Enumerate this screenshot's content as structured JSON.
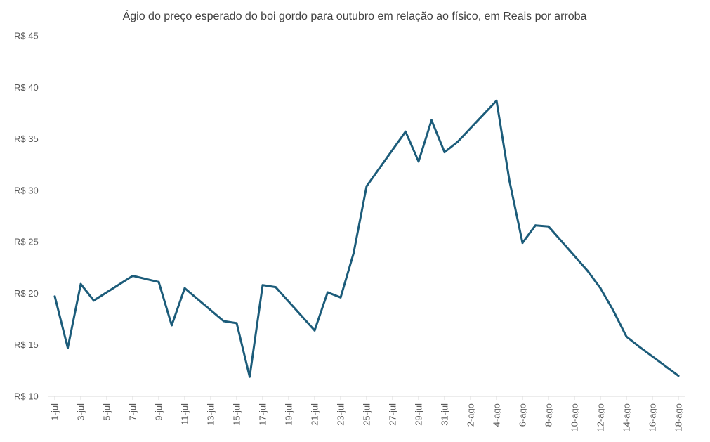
{
  "chart_data": {
    "type": "line",
    "title": "Ágio do preço esperado do boi gordo para outubro em relação ao físico, em Reais por arroba",
    "xlabel": "",
    "ylabel": "",
    "ylim": [
      10,
      45
    ],
    "yticks": [
      10,
      15,
      20,
      25,
      30,
      35,
      40,
      45
    ],
    "ytick_labels": [
      "R$ 10",
      "R$ 15",
      "R$ 20",
      "R$ 25",
      "R$ 30",
      "R$ 35",
      "R$ 40",
      "R$ 45"
    ],
    "xticks": [
      "1-jul",
      "3-jul",
      "5-jul",
      "7-jul",
      "9-jul",
      "11-jul",
      "13-jul",
      "15-jul",
      "17-jul",
      "19-jul",
      "21-jul",
      "23-jul",
      "25-jul",
      "27-jul",
      "29-jul",
      "31-jul",
      "2-ago",
      "4-ago",
      "6-ago",
      "8-ago",
      "10-ago",
      "12-ago",
      "14-ago",
      "16-ago",
      "18-ago"
    ],
    "x": [
      "1-jul",
      "2-jul",
      "3-jul",
      "4-jul",
      "7-jul",
      "8-jul",
      "9-jul",
      "10-jul",
      "11-jul",
      "14-jul",
      "15-jul",
      "16-jul",
      "17-jul",
      "18-jul",
      "21-jul",
      "22-jul",
      "23-jul",
      "24-jul",
      "25-jul",
      "28-jul",
      "29-jul",
      "30-jul",
      "31-jul",
      "1-ago",
      "4-ago",
      "5-ago",
      "6-ago",
      "7-ago",
      "8-ago",
      "11-ago",
      "12-ago",
      "13-ago",
      "14-ago",
      "15-ago",
      "18-ago"
    ],
    "y": [
      19.7,
      14.7,
      20.9,
      19.3,
      21.7,
      21.4,
      21.1,
      16.9,
      20.5,
      17.3,
      17.1,
      11.9,
      20.8,
      20.6,
      16.4,
      20.1,
      19.6,
      23.9,
      30.4,
      35.7,
      32.8,
      36.8,
      33.7,
      34.7,
      38.7,
      30.9,
      24.9,
      26.6,
      26.5,
      22.2,
      20.5,
      18.3,
      15.8,
      14.8,
      12.0
    ],
    "grid": false,
    "legend": "none"
  },
  "colors": {
    "line": "#1c5c7a",
    "axis": "#d9d9d9",
    "tick_text": "#595959",
    "title_text": "#404040"
  }
}
